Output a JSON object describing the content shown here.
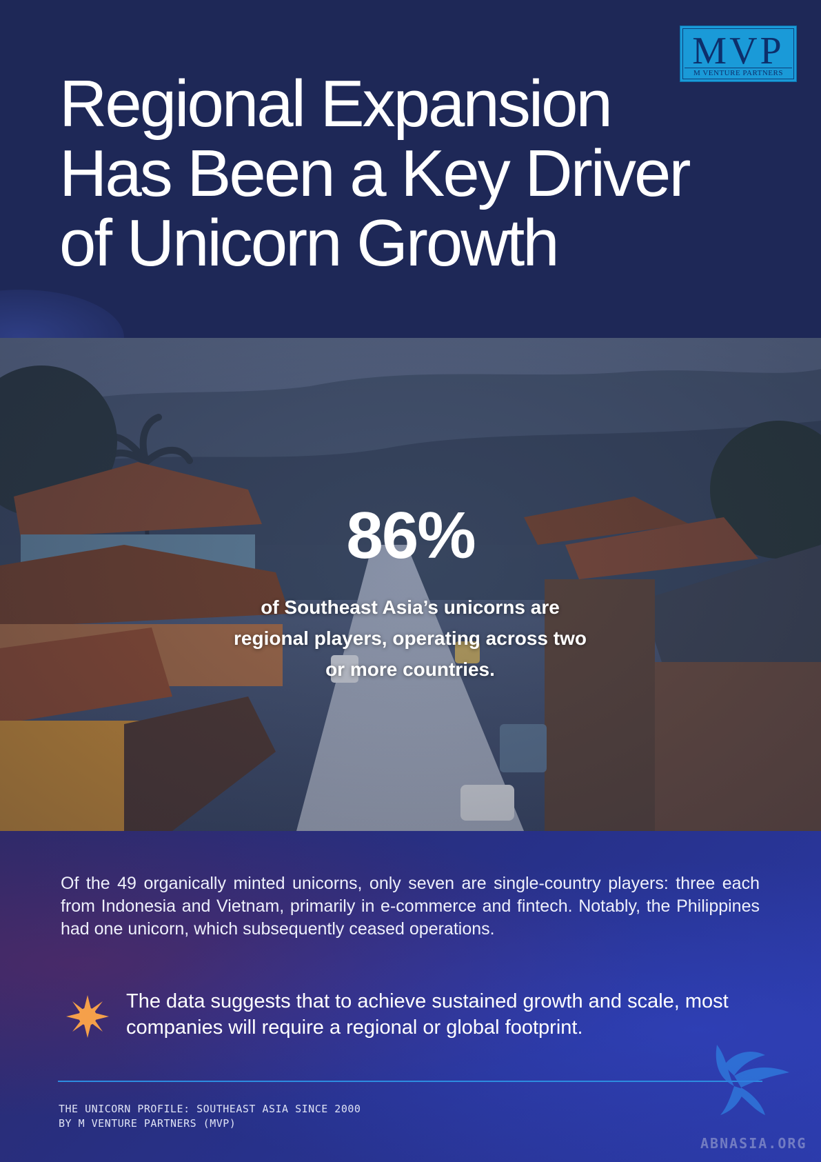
{
  "logo": {
    "main": "MVP",
    "sub": "M VENTURE PARTNERS"
  },
  "title": {
    "line1": "Regional Expansion",
    "line2": "Has Been a Key Driver",
    "line3": "of Unicorn Growth"
  },
  "stat": {
    "value": "86%",
    "caption": "of Southeast Asia’s unicorns are regional players, operating across two or more countries."
  },
  "body": {
    "paragraph": "Of the 49 organically minted unicorns, only seven are single-country players: three each from Indonesia and Vietnam, primarily in e-commerce and fintech. Notably, the Philippines had one unicorn, which subsequently ceased operations."
  },
  "callout": {
    "icon": "starburst-icon",
    "text": "The data suggests that to achieve sustained growth and scale, most companies will require a regional or global footprint."
  },
  "footer": {
    "line1": "THE UNICORN PROFILE: SOUTHEAST ASIA SINCE 2000",
    "line2": "BY M VENTURE PARTNERS (MVP)"
  },
  "watermark": "ABNASIA.ORG",
  "colors": {
    "header_bg": "#1e2857",
    "accent_line": "#2d8ce0",
    "icon_orange": "#f5a04a",
    "logo_blue": "#1a9ad8"
  }
}
